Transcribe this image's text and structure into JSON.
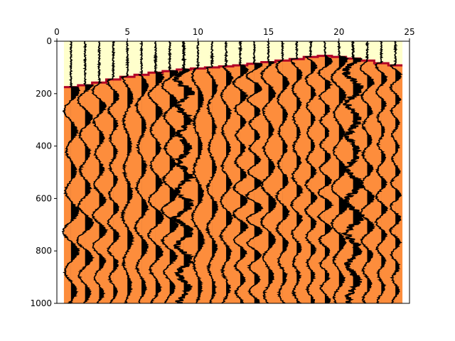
{
  "chart_data": {
    "type": "wiggle",
    "title": "",
    "xlabel": "",
    "ylabel": "",
    "xlim": [
      0,
      25
    ],
    "ylim": [
      1000,
      0
    ],
    "x_ticks": [
      0,
      5,
      10,
      15,
      20,
      25
    ],
    "y_ticks": [
      0,
      200,
      400,
      600,
      800,
      1000
    ],
    "x_tick_labels": [
      "0",
      "5",
      "10",
      "15",
      "20",
      "25"
    ],
    "y_tick_labels": [
      "0",
      "200",
      "400",
      "600",
      "800",
      "1000"
    ],
    "grid": false,
    "trace_count": 24,
    "trace_positions": [
      1,
      2,
      3,
      4,
      5,
      6,
      7,
      8,
      9,
      10,
      11,
      12,
      13,
      14,
      15,
      16,
      17,
      18,
      19,
      20,
      21,
      22,
      23,
      24
    ],
    "first_break_times": [
      175,
      168,
      158,
      146,
      136,
      128,
      120,
      114,
      108,
      104,
      100,
      96,
      92,
      86,
      80,
      74,
      68,
      60,
      56,
      60,
      66,
      74,
      84,
      92
    ],
    "mute_zone_color": "#ffffcc",
    "filled_region_color": "#fd8d3c",
    "first_break_line_color": "#b10026",
    "trace_color": "#000000"
  }
}
